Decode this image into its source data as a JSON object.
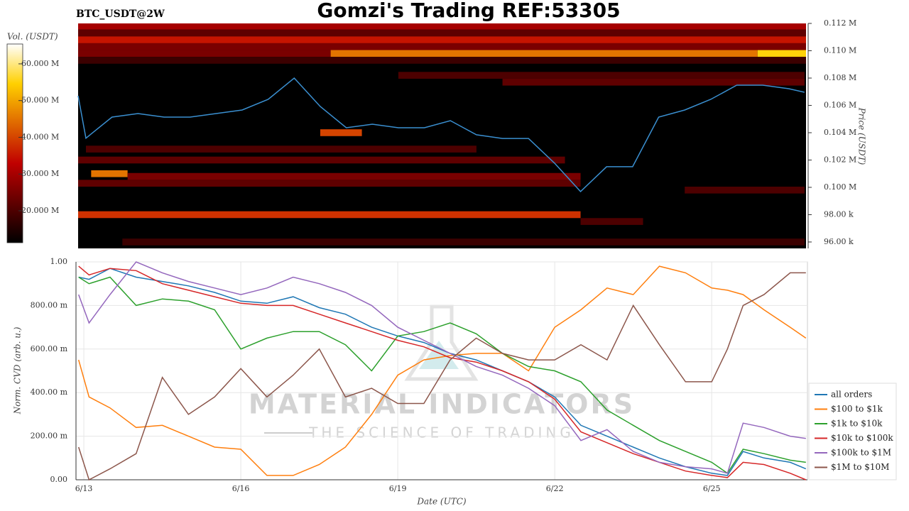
{
  "chart_data": [
    {
      "type": "heatmap",
      "title": "Gomzi's Trading REF:53305",
      "subtitle": "BTC_USDT@2W",
      "ylabel": "Price (USDT)",
      "colorbar_label": "Vol. (USDT)",
      "xlim": [
        12.85,
        26.83
      ],
      "ylim": [
        95530,
        112000
      ],
      "yticks": [
        {
          "value": 112000,
          "label": "0.112 M"
        },
        {
          "value": 110000,
          "label": "0.110 M"
        },
        {
          "value": 108000,
          "label": "0.108 M"
        },
        {
          "value": 106000,
          "label": "0.106 M"
        },
        {
          "value": 104000,
          "label": "0.104 M"
        },
        {
          "value": 102000,
          "label": "0.102 M"
        },
        {
          "value": 100000,
          "label": "0.100 M"
        },
        {
          "value": 98000,
          "label": "98.00 k"
        },
        {
          "value": 96000,
          "label": "96.00 k"
        }
      ],
      "clim": [
        11300000,
        65400000
      ],
      "cticks": [
        {
          "value": 20000000,
          "label": "20.000 M"
        },
        {
          "value": 30000000,
          "label": "30.000 M"
        },
        {
          "value": 40000000,
          "label": "40.000 M"
        },
        {
          "value": 50000000,
          "label": "50.000 M"
        },
        {
          "value": 60000000,
          "label": "60.000 M"
        }
      ],
      "price_bin": 500,
      "bands": [
        {
          "price": 111800,
          "start": 12.85,
          "end": 26.83,
          "volume": 30000000
        },
        {
          "price": 111300,
          "start": 12.85,
          "end": 26.83,
          "volume": 22000000
        },
        {
          "price": 110800,
          "start": 12.85,
          "end": 26.83,
          "volume": 35000000
        },
        {
          "price": 110300,
          "start": 12.85,
          "end": 26.83,
          "volume": 25000000
        },
        {
          "price": 109800,
          "start": 12.85,
          "end": 17.7,
          "volume": 25000000
        },
        {
          "price": 109800,
          "start": 17.7,
          "end": 25.9,
          "volume": 45000000
        },
        {
          "price": 109800,
          "start": 25.9,
          "end": 26.83,
          "volume": 55000000
        },
        {
          "price": 109300,
          "start": 12.85,
          "end": 26.83,
          "volume": 18000000
        },
        {
          "price": 108200,
          "start": 19,
          "end": 26.8,
          "volume": 20000000
        },
        {
          "price": 107700,
          "start": 21,
          "end": 26.8,
          "volume": 22000000
        },
        {
          "price": 104000,
          "start": 17.5,
          "end": 18.3,
          "volume": 40000000
        },
        {
          "price": 102800,
          "start": 13,
          "end": 20.5,
          "volume": 20000000
        },
        {
          "price": 102000,
          "start": 12.85,
          "end": 22.2,
          "volume": 22000000
        },
        {
          "price": 101000,
          "start": 13.1,
          "end": 13.8,
          "volume": 45000000
        },
        {
          "price": 100800,
          "start": 13.8,
          "end": 22.5,
          "volume": 25000000
        },
        {
          "price": 100300,
          "start": 12.85,
          "end": 22.5,
          "volume": 22000000
        },
        {
          "price": 99800,
          "start": 24.5,
          "end": 26.8,
          "volume": 20000000
        },
        {
          "price": 98000,
          "start": 12.85,
          "end": 22.5,
          "volume": 38000000
        },
        {
          "price": 97500,
          "start": 22.5,
          "end": 23.7,
          "volume": 20000000
        },
        {
          "price": 96000,
          "start": 13.7,
          "end": 26.8,
          "volume": 18000000
        }
      ],
      "price_line": {
        "color": "#3a8fd0",
        "x": [
          12.85,
          13.0,
          13.5,
          14,
          14.5,
          15,
          15.5,
          16,
          16.5,
          17,
          17.5,
          18,
          18.5,
          19,
          19.5,
          20,
          20.5,
          21,
          21.5,
          22,
          22.5,
          23,
          23.5,
          24,
          24.5,
          25,
          25.5,
          26,
          26.5,
          26.8
        ],
        "values": [
          106700,
          103600,
          105140,
          105400,
          105140,
          105140,
          105400,
          105660,
          106440,
          108000,
          105920,
          104360,
          104620,
          104360,
          104360,
          104880,
          103850,
          103580,
          103580,
          101770,
          99690,
          101510,
          101510,
          105140,
          105660,
          106440,
          107480,
          107480,
          107220,
          106960
        ]
      }
    },
    {
      "type": "line",
      "xlabel": "Date (UTC)",
      "ylabel": "Norm. CVD (arb. u.)",
      "watermark_title": "MATERIAL INDICATORS",
      "watermark_subtitle": "THE SCIENCE OF TRADING",
      "xlim": [
        12.85,
        26.83
      ],
      "ylim": [
        0,
        1.0
      ],
      "xticks": [
        {
          "value": 13,
          "label": "6/13"
        },
        {
          "value": 16,
          "label": "6/16"
        },
        {
          "value": 19,
          "label": "6/19"
        },
        {
          "value": 22,
          "label": "6/22"
        },
        {
          "value": 25,
          "label": "6/25"
        }
      ],
      "yticks": [
        {
          "value": 0,
          "label": "0.00"
        },
        {
          "value": 0.2,
          "label": "200.00 m"
        },
        {
          "value": 0.4,
          "label": "400.00 m"
        },
        {
          "value": 0.6,
          "label": "600.00 m"
        },
        {
          "value": 0.8,
          "label": "800.00 m"
        },
        {
          "value": 1.0,
          "label": "1.00"
        }
      ],
      "grid": true,
      "x": [
        12.9,
        13.1,
        13.5,
        14,
        14.5,
        15,
        15.5,
        16,
        16.5,
        17,
        17.5,
        18,
        18.5,
        19,
        19.5,
        20,
        20.5,
        21,
        21.5,
        22,
        22.5,
        23,
        23.5,
        24,
        24.5,
        25,
        25.3,
        25.6,
        26,
        26.5,
        26.8
      ],
      "series": [
        {
          "name": "all orders",
          "color": "#1f77b4",
          "values": [
            0.93,
            0.92,
            0.97,
            0.93,
            0.91,
            0.89,
            0.86,
            0.82,
            0.81,
            0.84,
            0.79,
            0.76,
            0.7,
            0.66,
            0.63,
            0.58,
            0.55,
            0.5,
            0.45,
            0.38,
            0.25,
            0.2,
            0.15,
            0.1,
            0.06,
            0.03,
            0.02,
            0.13,
            0.1,
            0.08,
            0.05
          ]
        },
        {
          "name": "$100 to $1k",
          "color": "#ff7f0e",
          "values": [
            0.55,
            0.38,
            0.33,
            0.24,
            0.25,
            0.2,
            0.15,
            0.14,
            0.02,
            0.02,
            0.07,
            0.15,
            0.3,
            0.48,
            0.55,
            0.57,
            0.58,
            0.58,
            0.5,
            0.7,
            0.78,
            0.88,
            0.85,
            0.98,
            0.95,
            0.88,
            0.87,
            0.85,
            0.78,
            0.7,
            0.65
          ]
        },
        {
          "name": "$1k to $10k",
          "color": "#2ca02c",
          "values": [
            0.93,
            0.9,
            0.93,
            0.8,
            0.83,
            0.82,
            0.78,
            0.6,
            0.65,
            0.68,
            0.68,
            0.62,
            0.5,
            0.66,
            0.68,
            0.72,
            0.67,
            0.58,
            0.52,
            0.5,
            0.45,
            0.32,
            0.25,
            0.18,
            0.13,
            0.08,
            0.03,
            0.14,
            0.12,
            0.09,
            0.08
          ]
        },
        {
          "name": "$10k to $100k",
          "color": "#d62728",
          "values": [
            0.98,
            0.94,
            0.97,
            0.96,
            0.9,
            0.87,
            0.84,
            0.81,
            0.8,
            0.8,
            0.76,
            0.72,
            0.68,
            0.64,
            0.61,
            0.56,
            0.54,
            0.5,
            0.45,
            0.37,
            0.22,
            0.17,
            0.12,
            0.08,
            0.04,
            0.02,
            0.01,
            0.08,
            0.07,
            0.03,
            0.0
          ]
        },
        {
          "name": "$100k to $1M",
          "color": "#9467bd",
          "values": [
            0.85,
            0.72,
            0.85,
            1.0,
            0.95,
            0.91,
            0.88,
            0.85,
            0.88,
            0.93,
            0.9,
            0.86,
            0.8,
            0.7,
            0.64,
            0.58,
            0.52,
            0.48,
            0.42,
            0.34,
            0.18,
            0.23,
            0.13,
            0.08,
            0.06,
            0.05,
            0.03,
            0.26,
            0.24,
            0.2,
            0.19
          ]
        },
        {
          "name": "$1M to $10M",
          "color": "#8c564b",
          "values": [
            0.15,
            0.0,
            0.05,
            0.12,
            0.47,
            0.3,
            0.38,
            0.51,
            0.38,
            0.48,
            0.6,
            0.38,
            0.42,
            0.35,
            0.35,
            0.55,
            0.65,
            0.58,
            0.55,
            0.55,
            0.62,
            0.55,
            0.8,
            0.62,
            0.45,
            0.45,
            0.6,
            0.8,
            0.85,
            0.95,
            0.95
          ]
        }
      ]
    }
  ]
}
